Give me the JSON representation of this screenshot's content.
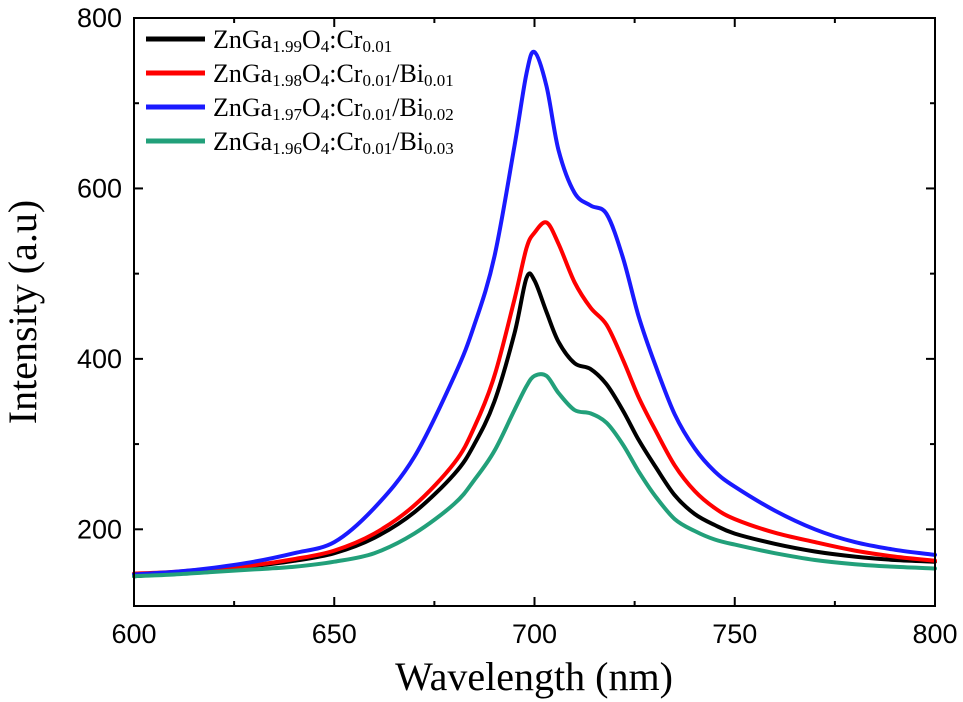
{
  "chart_data": {
    "type": "line",
    "title": "",
    "xlabel": "Wavelength (nm)",
    "ylabel": "Intensity (a.u)",
    "xlim": [
      600,
      800
    ],
    "ylim": [
      110,
      800
    ],
    "xticks": [
      600,
      650,
      700,
      750,
      800
    ],
    "yticks": [
      200,
      400,
      600,
      800
    ],
    "grid": false,
    "legend_position": "top-left",
    "x": [
      600,
      610,
      620,
      630,
      640,
      650,
      660,
      670,
      680,
      685,
      690,
      695,
      698,
      700,
      703,
      706,
      710,
      714,
      718,
      722,
      726,
      730,
      735,
      740,
      745,
      750,
      760,
      770,
      780,
      790,
      800
    ],
    "series": [
      {
        "name": "ZnGa1.99O4:Cr0.01",
        "legend_parts": [
          [
            "ZnGa",
            ""
          ],
          [
            "1.99",
            "sub"
          ],
          [
            "O",
            ""
          ],
          [
            "4",
            "sub"
          ],
          [
            ":Cr",
            ""
          ],
          [
            "0.01",
            "sub"
          ]
        ],
        "color": "#000000",
        "values": [
          145,
          148,
          152,
          157,
          163,
          172,
          190,
          220,
          265,
          300,
          350,
          430,
          495,
          492,
          455,
          420,
          395,
          388,
          370,
          340,
          305,
          275,
          240,
          218,
          205,
          195,
          183,
          174,
          168,
          164,
          162
        ]
      },
      {
        "name": "ZnGa1.98O4:Cr0.01/Bi0.01",
        "legend_parts": [
          [
            "ZnGa",
            ""
          ],
          [
            "1.98",
            "sub"
          ],
          [
            "O",
            ""
          ],
          [
            "4",
            "sub"
          ],
          [
            ":Cr",
            ""
          ],
          [
            "0.01",
            "sub"
          ],
          [
            "/Bi",
            ""
          ],
          [
            "0.01",
            "sub"
          ]
        ],
        "color": "#ff0000",
        "values": [
          148,
          150,
          154,
          158,
          165,
          175,
          195,
          228,
          278,
          320,
          380,
          470,
          530,
          548,
          560,
          535,
          490,
          460,
          440,
          400,
          355,
          318,
          275,
          245,
          225,
          212,
          196,
          185,
          175,
          168,
          163
        ]
      },
      {
        "name": "ZnGa1.97O4:Cr0.01/Bi0.02",
        "legend_parts": [
          [
            "ZnGa",
            ""
          ],
          [
            "1.97",
            "sub"
          ],
          [
            "O",
            ""
          ],
          [
            "4",
            "sub"
          ],
          [
            ":Cr",
            ""
          ],
          [
            "0.01",
            "sub"
          ],
          [
            "/Bi",
            ""
          ],
          [
            "0.02",
            "sub"
          ]
        ],
        "color": "#1a1aff",
        "values": [
          147,
          150,
          155,
          162,
          172,
          185,
          225,
          285,
          380,
          440,
          520,
          650,
          735,
          760,
          720,
          645,
          595,
          580,
          570,
          520,
          450,
          395,
          335,
          295,
          268,
          250,
          222,
          200,
          185,
          176,
          170
        ]
      },
      {
        "name": "ZnGa1.96O4:Cr0.01/Bi0.03",
        "legend_parts": [
          [
            "ZnGa",
            ""
          ],
          [
            "1.96",
            "sub"
          ],
          [
            "O",
            ""
          ],
          [
            "4",
            "sub"
          ],
          [
            ":Cr",
            ""
          ],
          [
            "0.01",
            "sub"
          ],
          [
            "/Bi",
            ""
          ],
          [
            "0.03",
            "sub"
          ]
        ],
        "color": "#22a07a",
        "values": [
          145,
          147,
          150,
          153,
          156,
          162,
          172,
          195,
          230,
          258,
          292,
          340,
          368,
          380,
          380,
          360,
          340,
          336,
          325,
          300,
          268,
          240,
          212,
          198,
          188,
          182,
          172,
          164,
          159,
          156,
          154
        ]
      }
    ]
  }
}
